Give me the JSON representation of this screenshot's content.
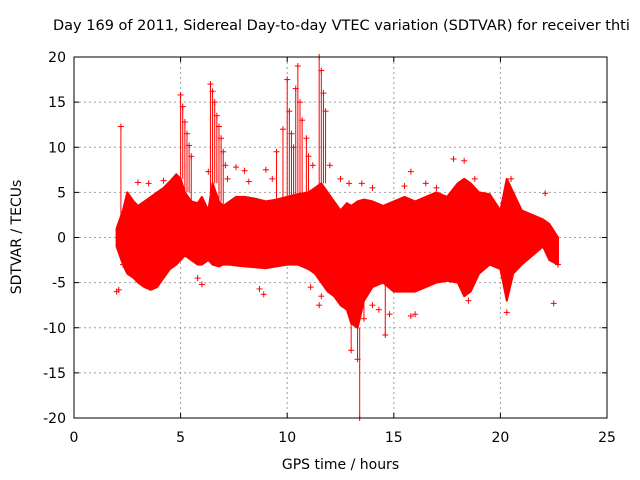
{
  "chart_data": {
    "type": "scatter",
    "title": "Day 169 of 2011, Sidereal Day-to-day VTEC variation (SDTVAR) for receiver thti",
    "xlabel": "GPS time / hours",
    "ylabel": "SDTVAR / TECUs",
    "xlim": [
      0,
      25
    ],
    "ylim": [
      -20,
      20
    ],
    "xticks": [
      0,
      5,
      10,
      15,
      20,
      25
    ],
    "yticks": [
      -20,
      -15,
      -10,
      -5,
      0,
      5,
      10,
      15,
      20
    ],
    "grid": true,
    "legend": "none",
    "marker": "+",
    "series_color": "#ff0000",
    "series": [
      {
        "name": "SDTVAR",
        "band": {
          "x": [
            2.0,
            2.3,
            2.5,
            2.8,
            3.0,
            3.3,
            3.6,
            3.9,
            4.2,
            4.5,
            4.8,
            5.0,
            5.2,
            5.5,
            5.8,
            6.0,
            6.3,
            6.5,
            6.8,
            7.0,
            7.3,
            7.6,
            8.0,
            8.5,
            9.0,
            9.5,
            10.0,
            10.5,
            11.0,
            11.3,
            11.6,
            11.9,
            12.2,
            12.5,
            12.8,
            13.0,
            13.3,
            13.6,
            14.0,
            14.5,
            15.0,
            15.5,
            16.0,
            16.5,
            17.0,
            17.5,
            18.0,
            18.3,
            18.6,
            19.0,
            19.5,
            20.0,
            20.3,
            20.6,
            21.0,
            21.5,
            22.0,
            22.3,
            22.7
          ],
          "upper": [
            1,
            3,
            5,
            4,
            3.5,
            4,
            4.5,
            5,
            5.5,
            6.2,
            7,
            6.5,
            5,
            4,
            3.8,
            4.5,
            3,
            6,
            4,
            3.5,
            4,
            4.5,
            4.5,
            4.3,
            4,
            4.2,
            4.5,
            4.8,
            5,
            5.5,
            6,
            5,
            4,
            3,
            3.8,
            3.5,
            4,
            4.2,
            4,
            3.5,
            4,
            4.5,
            4,
            4.5,
            5,
            4.5,
            6,
            6.5,
            6,
            5,
            4.8,
            3,
            6.5,
            5,
            3,
            2.5,
            2,
            1.5,
            0
          ],
          "lower": [
            -1,
            -3,
            -4,
            -4.5,
            -5,
            -5.5,
            -5.8,
            -5.5,
            -4.5,
            -3.5,
            -3,
            -2.5,
            -2,
            -2.5,
            -3,
            -3,
            -2.5,
            -3,
            -3.2,
            -3,
            -3,
            -3.1,
            -3.2,
            -3.3,
            -3.4,
            -3.2,
            -3,
            -3,
            -3.5,
            -4,
            -5,
            -6,
            -6.5,
            -7.5,
            -8,
            -9.5,
            -10,
            -7,
            -5.5,
            -5,
            -6,
            -6,
            -6,
            -5.5,
            -5,
            -4.8,
            -5,
            -6.5,
            -6,
            -4,
            -3,
            -3.5,
            -7,
            -4,
            -3,
            -2,
            -1,
            -2.5,
            -3
          ]
        },
        "outliers": [
          [
            2.2,
            12.3
          ],
          [
            2.0,
            -6.0
          ],
          [
            2.1,
            -5.8
          ],
          [
            2.3,
            -3.0
          ],
          [
            3.0,
            6.1
          ],
          [
            3.5,
            6.0
          ],
          [
            4.2,
            6.3
          ],
          [
            5.0,
            15.8
          ],
          [
            5.1,
            14.5
          ],
          [
            5.2,
            12.8
          ],
          [
            5.3,
            11.5
          ],
          [
            5.4,
            10.2
          ],
          [
            5.5,
            9.0
          ],
          [
            5.8,
            -4.5
          ],
          [
            6.0,
            -5.2
          ],
          [
            6.3,
            7.3
          ],
          [
            6.4,
            17.0
          ],
          [
            6.5,
            16.2
          ],
          [
            6.6,
            15.0
          ],
          [
            6.7,
            13.5
          ],
          [
            6.8,
            12.3
          ],
          [
            6.9,
            11.0
          ],
          [
            7.0,
            9.5
          ],
          [
            7.1,
            8.0
          ],
          [
            7.2,
            6.5
          ],
          [
            7.6,
            7.8
          ],
          [
            8.0,
            7.4
          ],
          [
            8.2,
            6.2
          ],
          [
            9.0,
            7.5
          ],
          [
            9.3,
            6.5
          ],
          [
            8.7,
            -5.7
          ],
          [
            8.9,
            -6.3
          ],
          [
            9.5,
            9.5
          ],
          [
            9.8,
            12.0
          ],
          [
            10.0,
            17.5
          ],
          [
            10.1,
            14.0
          ],
          [
            10.2,
            11.5
          ],
          [
            10.3,
            10.0
          ],
          [
            10.4,
            16.5
          ],
          [
            10.5,
            19.0
          ],
          [
            10.6,
            15.0
          ],
          [
            10.7,
            13.0
          ],
          [
            10.9,
            11.0
          ],
          [
            11.0,
            9.0
          ],
          [
            11.2,
            8.0
          ],
          [
            11.5,
            -7.5
          ],
          [
            11.1,
            -5.5
          ],
          [
            11.5,
            20.0
          ],
          [
            11.6,
            18.5
          ],
          [
            11.7,
            16.0
          ],
          [
            11.8,
            14.0
          ],
          [
            11.6,
            -6.5
          ],
          [
            12.0,
            8.0
          ],
          [
            12.5,
            6.5
          ],
          [
            12.9,
            6.0
          ],
          [
            13.0,
            -12.5
          ],
          [
            13.3,
            -13.5
          ],
          [
            13.4,
            -20.0
          ],
          [
            13.6,
            -9.0
          ],
          [
            13.5,
            6.0
          ],
          [
            14.0,
            5.5
          ],
          [
            14.3,
            -8.0
          ],
          [
            14.6,
            -10.8
          ],
          [
            14.8,
            -8.5
          ],
          [
            14.0,
            -7.5
          ],
          [
            15.5,
            5.7
          ],
          [
            15.8,
            7.3
          ],
          [
            15.8,
            -8.7
          ],
          [
            16.0,
            -8.5
          ],
          [
            16.5,
            6.0
          ],
          [
            17.0,
            5.5
          ],
          [
            17.8,
            8.7
          ],
          [
            18.3,
            8.5
          ],
          [
            18.5,
            -7.0
          ],
          [
            18.8,
            6.5
          ],
          [
            20.3,
            -8.3
          ],
          [
            20.5,
            6.5
          ],
          [
            22.1,
            4.9
          ],
          [
            22.5,
            -7.3
          ],
          [
            22.7,
            -3.0
          ]
        ]
      }
    ]
  }
}
